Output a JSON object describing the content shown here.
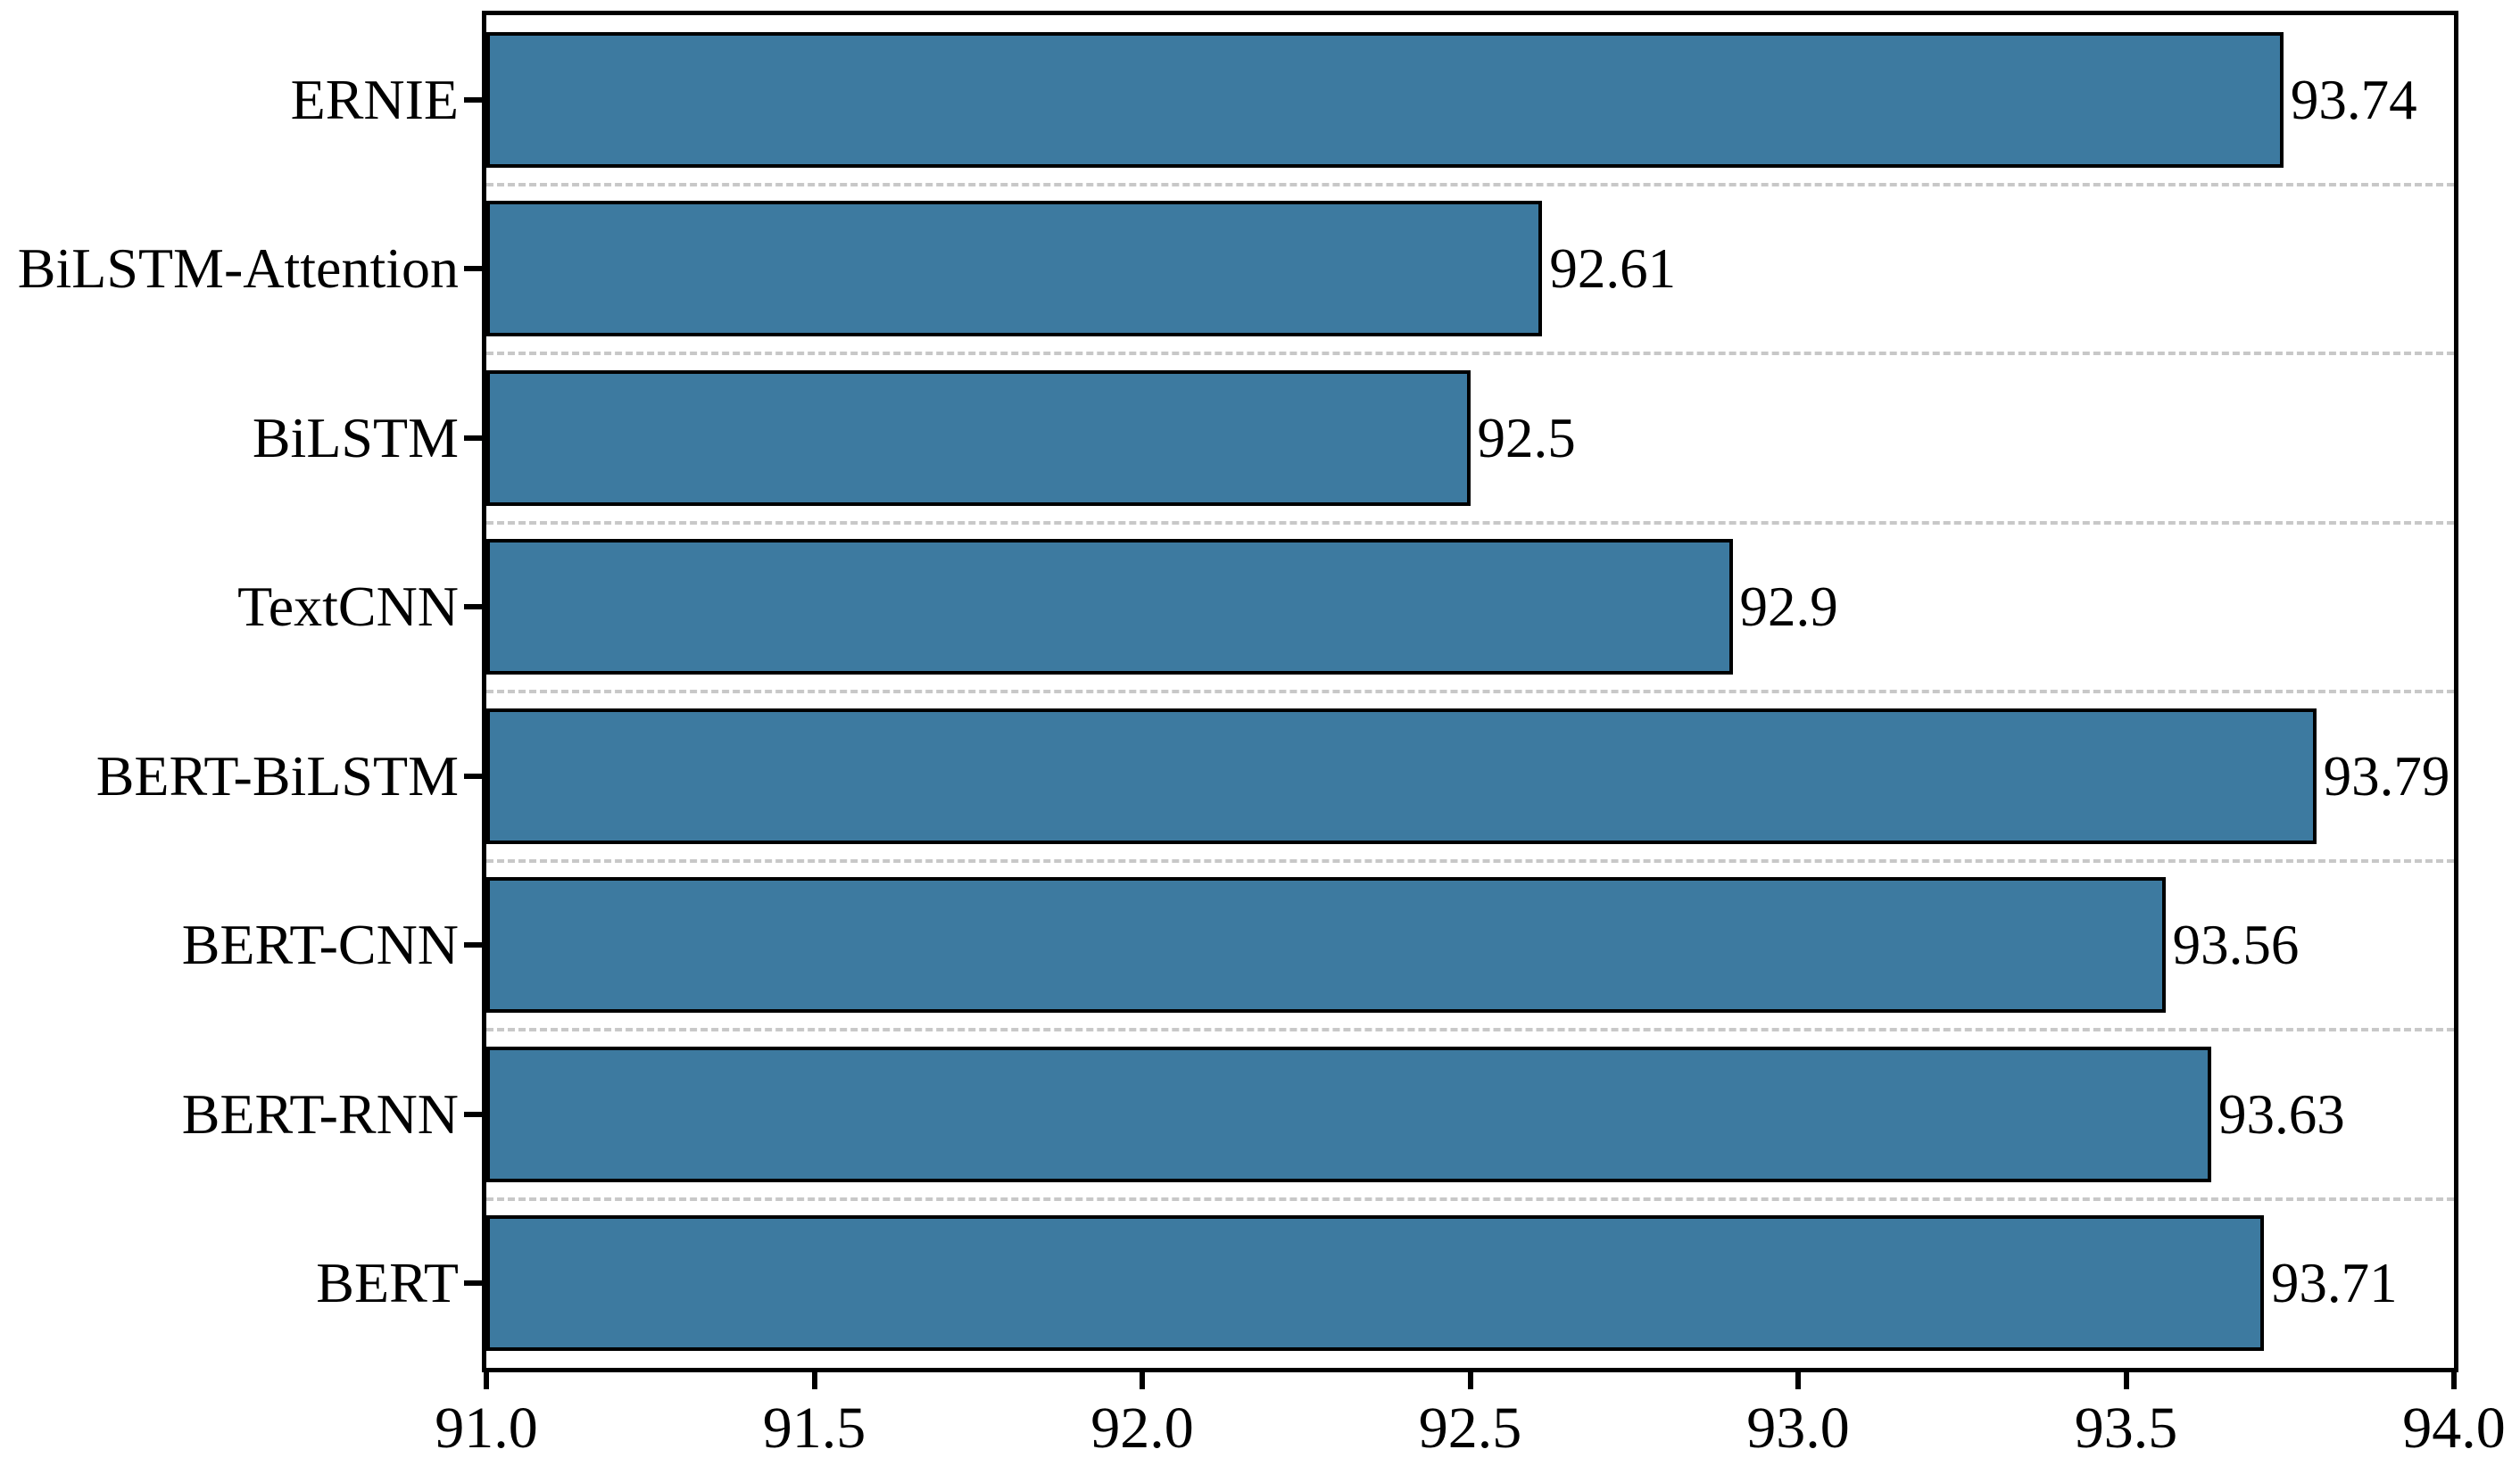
{
  "chart_data": {
    "type": "bar",
    "orientation": "horizontal",
    "title": "",
    "xlabel": "",
    "ylabel": "",
    "categories": [
      "ERNIE",
      "BiLSTM-Attention",
      "BiLSTM",
      "TextCNN",
      "BERT-BiLSTM",
      "BERT-CNN",
      "BERT-RNN",
      "BERT"
    ],
    "values": [
      93.74,
      92.61,
      92.5,
      92.9,
      93.79,
      93.56,
      93.63,
      93.71
    ],
    "value_labels": [
      "93.74",
      "92.61",
      "92.5",
      "92.9",
      "93.79",
      "93.56",
      "93.63",
      "93.71"
    ],
    "xlim": [
      91.0,
      94.0
    ],
    "x_tick_values": [
      91.0,
      91.5,
      92.0,
      92.5,
      93.0,
      93.5,
      94.0
    ],
    "x_tick_labels": [
      "91.0",
      "91.5",
      "92.0",
      "92.5",
      "93.0",
      "93.5",
      "94.0"
    ],
    "grid": {
      "horizontal_dashed_between_categories": true,
      "vertical_gridlines": false
    },
    "legend": {
      "visible": false
    },
    "frame": "full-box",
    "colors": {
      "bar_fill": "#3D7AA0",
      "bar_border": "#000000",
      "gridline": "#c8c8c8",
      "axis": "#000000",
      "text": "#000000",
      "background": "#ffffff"
    }
  }
}
